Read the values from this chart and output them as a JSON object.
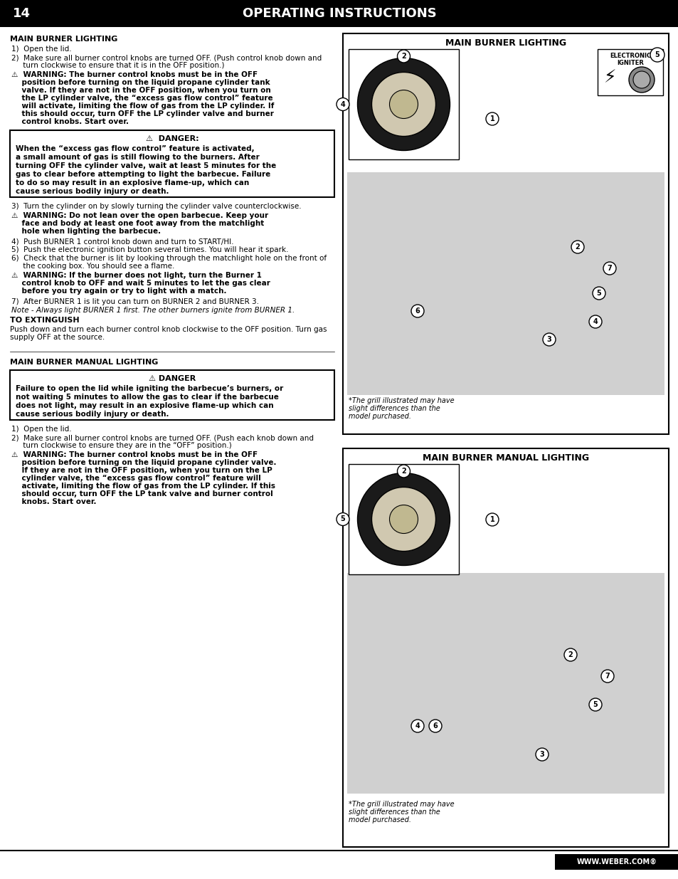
{
  "page_number": "14",
  "header_title": "OPERATING INSTRUCTIONS",
  "header_bg": "#000000",
  "header_text_color": "#ffffff",
  "page_bg": "#ffffff",
  "footer_text": "WWW.WEBER.COM®",
  "footer_bg": "#000000",
  "footer_text_color": "#ffffff",
  "section1_title": "MAIN BURNER LIGHTING",
  "s1_item1": "1)  Open the lid.",
  "s1_item2a": "2)  Make sure all burner control knobs are turned OFF. (Push control knob down and",
  "s1_item2b": "     turn clockwise to ensure that it is in the OFF position.)",
  "warn1_line1": "⚠  WARNING: The burner control knobs must be in the OFF",
  "warn1_line2": "    position before turning on the liquid propane cylinder tank",
  "warn1_line3": "    valve. If they are not in the OFF position, when you turn on",
  "warn1_line4": "    the LP cylinder valve, the “excess gas flow control” feature",
  "warn1_line5": "    will activate, limiting the flow of gas from the LP cylinder. If",
  "warn1_line6": "    this should occur, turn OFF the LP cylinder valve and burner",
  "warn1_line7": "    control knobs. Start over.",
  "danger1_title": "⚠  DANGER:",
  "danger1_lines": [
    "When the “excess gas flow control” feature is activated,",
    "a small amount of gas is still flowing to the burners. After",
    "turning OFF the cylinder valve, wait at least 5 minutes for the",
    "gas to clear before attempting to light the barbecue. Failure",
    "to do so may result in an explosive flame-up, which can",
    "cause serious bodily injury or death."
  ],
  "s1_item3": "3)  Turn the cylinder on by slowly turning the cylinder valve counterclockwise.",
  "warn2_line1": "⚠  WARNING: Do not lean over the open barbecue. Keep your",
  "warn2_line2": "    face and body at least one foot away from the matchlight",
  "warn2_line3": "    hole when lighting the barbecue.",
  "s1_item4": "4)  Push BURNER 1 control knob down and turn to START/HI.",
  "s1_item5": "5)  Push the electronic ignition button several times. You will hear it spark.",
  "s1_item6a": "6)  Check that the burner is lit by looking through the matchlight hole on the front of",
  "s1_item6b": "     the cooking box. You should see a flame.",
  "warn3_line1": "⚠  WARNING: If the burner does not light, turn the Burner 1",
  "warn3_line2": "    control knob to OFF and wait 5 minutes to let the gas clear",
  "warn3_line3": "    before you try again or try to light with a match.",
  "s1_item7": "7)  After BURNER 1 is lit you can turn on BURNER 2 and BURNER 3.",
  "note1": "Note - Always light BURNER 1 first. The other burners ignite from BURNER 1.",
  "extinguish_title": "TO EXTINGUISH",
  "extinguish_line1": "Push down and turn each burner control knob clockwise to the OFF position. Turn gas",
  "extinguish_line2": "supply OFF at the source.",
  "section2_title": "MAIN BURNER MANUAL LIGHTING",
  "danger2_title": "⚠ DANGER",
  "danger2_lines": [
    "Failure to open the lid while igniting the barbecue’s burners, or",
    "not waiting 5 minutes to allow the gas to clear if the barbecue",
    "does not light, may result in an explosive flame-up which can",
    "cause serious bodily injury or death."
  ],
  "s2_item1": "1)  Open the lid.",
  "s2_item2a": "2)  Make sure all burner control knobs are turned OFF. (Push each knob down and",
  "s2_item2b": "     turn clockwise to ensure they are in the “OFF” position.)",
  "warn4_line1": "⚠  WARNING: The burner control knobs must be in the OFF",
  "warn4_line2": "    position before turning on the liquid propane cylinder valve.",
  "warn4_line3": "    If they are not in the OFF position, when you turn on the LP",
  "warn4_line4": "    cylinder valve, the “excess gas flow control” feature will",
  "warn4_line5": "    activate, limiting the flow of gas from the LP cylinder. If this",
  "warn4_line6": "    should occur, turn OFF the LP tank valve and burner control",
  "warn4_line7": "    knobs. Start over.",
  "rp1_title": "MAIN BURNER LIGHTING",
  "rp2_title": "MAIN BURNER MANUAL LIGHTING",
  "footnote_line1": "*The grill illustrated may have",
  "footnote_line2": "slight differences than the",
  "footnote_line3": "model purchased.",
  "ei_label": "ELECTRONIC\nIGNITER",
  "gray_color": "#d0d0d0",
  "knob_outer": "#c8c8c8",
  "knob_inner": "#e8e8e8"
}
